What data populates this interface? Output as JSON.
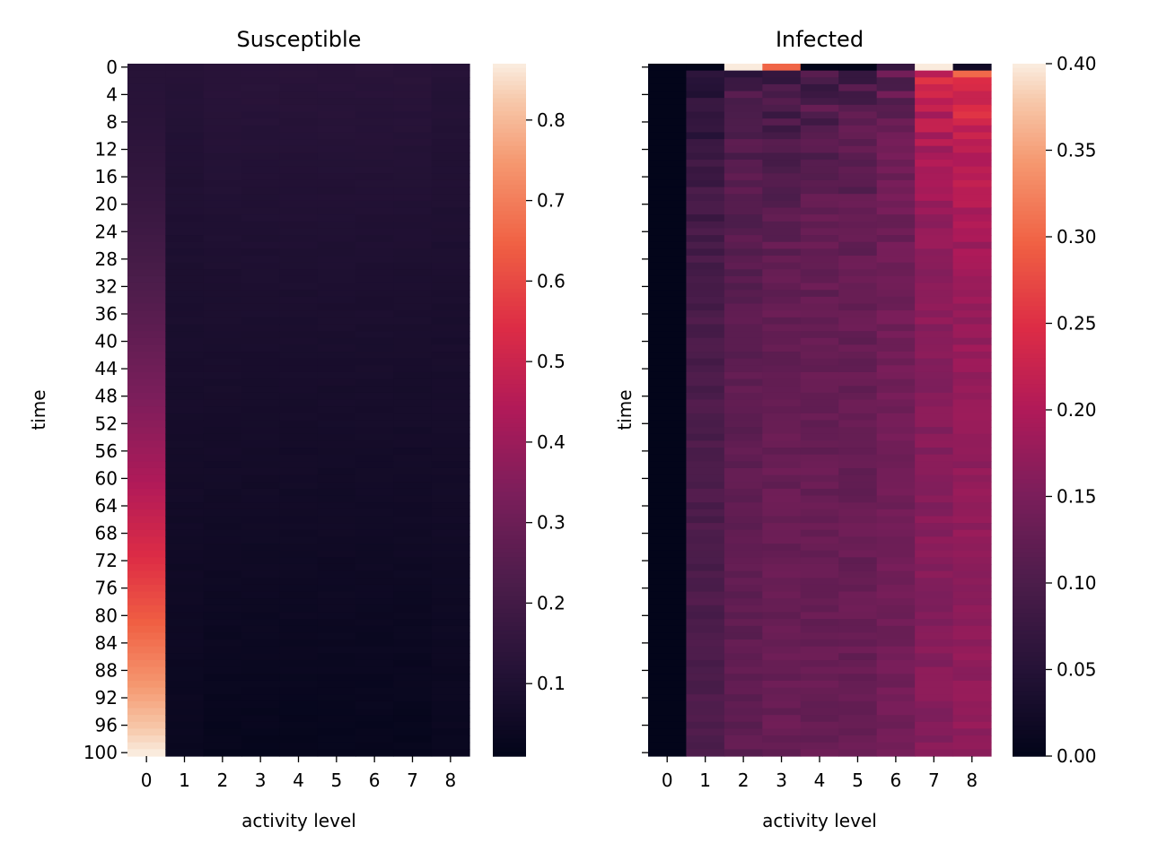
{
  "chart_data": [
    {
      "type": "heatmap",
      "title": "Susceptible",
      "xlabel": "activity level",
      "ylabel": "time",
      "x_categories": [
        "0",
        "1",
        "2",
        "3",
        "4",
        "5",
        "6",
        "7",
        "8"
      ],
      "y_ticks": [
        "0",
        "4",
        "8",
        "12",
        "16",
        "20",
        "24",
        "28",
        "32",
        "36",
        "40",
        "44",
        "48",
        "52",
        "56",
        "60",
        "64",
        "68",
        "72",
        "76",
        "80",
        "84",
        "88",
        "92",
        "96",
        "100"
      ],
      "y_range": [
        0,
        100
      ],
      "colorbar": {
        "min": 0.01,
        "max": 0.87,
        "ticks": [
          "0.1",
          "0.2",
          "0.3",
          "0.4",
          "0.5",
          "0.6",
          "0.7",
          "0.8"
        ]
      },
      "column_profiles": [
        {
          "level": "0",
          "start": 0.12,
          "end": 0.87
        },
        {
          "level": "1",
          "start": 0.12,
          "end": 0.03
        },
        {
          "level": "2",
          "start": 0.13,
          "end": 0.02
        },
        {
          "level": "3",
          "start": 0.13,
          "end": 0.02
        },
        {
          "level": "4",
          "start": 0.13,
          "end": 0.02
        },
        {
          "level": "5",
          "start": 0.13,
          "end": 0.02
        },
        {
          "level": "6",
          "start": 0.13,
          "end": 0.02
        },
        {
          "level": "7",
          "start": 0.13,
          "end": 0.02
        },
        {
          "level": "8",
          "start": 0.12,
          "end": 0.03
        }
      ]
    },
    {
      "type": "heatmap",
      "title": "Infected",
      "xlabel": "activity level",
      "ylabel": "time",
      "x_categories": [
        "0",
        "1",
        "2",
        "3",
        "4",
        "5",
        "6",
        "7",
        "8"
      ],
      "y_ticks": [],
      "y_range": [
        0,
        100
      ],
      "colorbar": {
        "min": 0.0,
        "max": 0.4,
        "ticks": [
          "0.00",
          "0.05",
          "0.10",
          "0.15",
          "0.20",
          "0.25",
          "0.30",
          "0.35",
          "0.40"
        ]
      },
      "initial_row": [
        0.0,
        0.0,
        0.4,
        0.3,
        0.0,
        0.0,
        0.07,
        0.4,
        0.02
      ],
      "column_profiles": [
        {
          "level": "0",
          "early": 0.0,
          "settled": 0.0
        },
        {
          "level": "1",
          "early": 0.04,
          "settled": 0.1
        },
        {
          "level": "2",
          "early": 0.08,
          "settled": 0.12
        },
        {
          "level": "3",
          "early": 0.07,
          "settled": 0.13
        },
        {
          "level": "4",
          "early": 0.09,
          "settled": 0.13
        },
        {
          "level": "5",
          "early": 0.09,
          "settled": 0.13
        },
        {
          "level": "6",
          "early": 0.12,
          "settled": 0.14
        },
        {
          "level": "7",
          "early": 0.24,
          "settled": 0.16
        },
        {
          "level": "8",
          "early": 0.28,
          "settled": 0.17
        }
      ]
    }
  ]
}
